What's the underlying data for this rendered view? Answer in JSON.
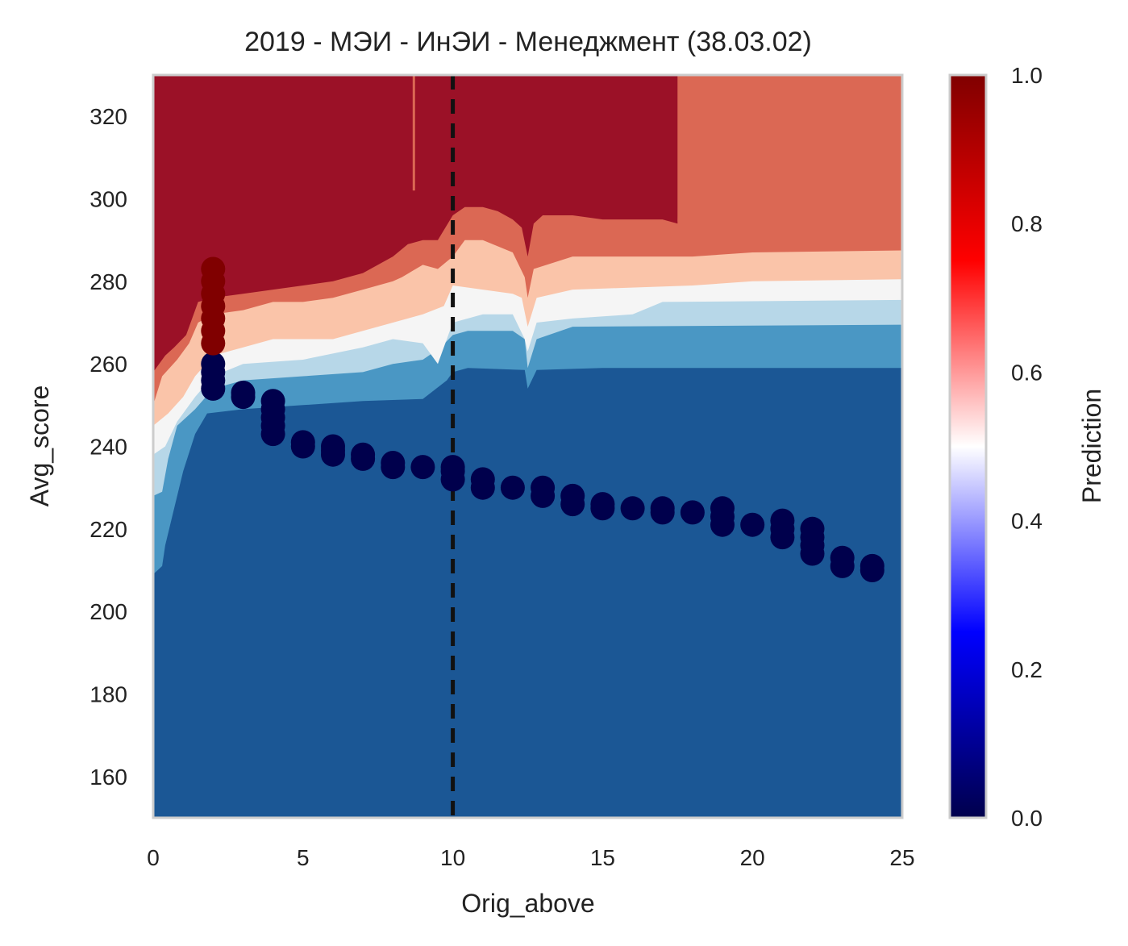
{
  "chart_data": {
    "type": "contour",
    "title": "2019 - МЭИ - ИнЭИ - Менеджмент (38.03.02)",
    "xlabel": "Orig_above",
    "ylabel": "Avg_score",
    "xlim": [
      0,
      25
    ],
    "ylim": [
      150,
      330
    ],
    "x_ticks": [
      "0",
      "5",
      "10",
      "15",
      "20",
      "25"
    ],
    "y_ticks": [
      "160",
      "180",
      "200",
      "220",
      "240",
      "260",
      "280",
      "300",
      "320"
    ],
    "colorbar": {
      "label": "Prediction",
      "range": [
        0.0,
        1.0
      ],
      "ticks": [
        "0.0",
        "0.2",
        "0.4",
        "0.6",
        "0.8",
        "1.0"
      ],
      "colormap": [
        "#00004c",
        "#0000ff",
        "#ffffff",
        "#ff0000",
        "#800000"
      ]
    },
    "contour_colors": {
      "band_0": "#1b5795",
      "band_1": "#4a97c4",
      "band_2": "#b7d7e8",
      "band_3": "#f5f5f5",
      "band_4": "#fac4a9",
      "band_5": "#db6854",
      "band_6": "#9b1127"
    },
    "threshold_line": {
      "x": 10,
      "style": "dashed",
      "color": "#111111"
    },
    "points": {
      "positive_color": "#800000",
      "negative_color": "#00004c",
      "positive": [
        [
          2,
          265
        ],
        [
          2,
          268
        ],
        [
          2,
          271
        ],
        [
          2,
          274
        ],
        [
          2,
          277
        ],
        [
          2,
          280
        ],
        [
          2,
          283
        ]
      ],
      "negative": [
        [
          2,
          254
        ],
        [
          2,
          256
        ],
        [
          2,
          258
        ],
        [
          2,
          260
        ],
        [
          3,
          252
        ],
        [
          3,
          253
        ],
        [
          4,
          243
        ],
        [
          4,
          245
        ],
        [
          4,
          247
        ],
        [
          4,
          249
        ],
        [
          4,
          251
        ],
        [
          5,
          240
        ],
        [
          5,
          241
        ],
        [
          6,
          238
        ],
        [
          6,
          239
        ],
        [
          6,
          240
        ],
        [
          7,
          237
        ],
        [
          7,
          238
        ],
        [
          8,
          235
        ],
        [
          8,
          236
        ],
        [
          9,
          235
        ],
        [
          10,
          232
        ],
        [
          10,
          234
        ],
        [
          10,
          235
        ],
        [
          11,
          230
        ],
        [
          11,
          232
        ],
        [
          12,
          230
        ],
        [
          13,
          228
        ],
        [
          13,
          230
        ],
        [
          14,
          226
        ],
        [
          14,
          228
        ],
        [
          15,
          225
        ],
        [
          15,
          226
        ],
        [
          16,
          225
        ],
        [
          17,
          224
        ],
        [
          17,
          225
        ],
        [
          18,
          224
        ],
        [
          19,
          221
        ],
        [
          19,
          223
        ],
        [
          19,
          225
        ],
        [
          20,
          221
        ],
        [
          21,
          218
        ],
        [
          21,
          220
        ],
        [
          21,
          222
        ],
        [
          22,
          214
        ],
        [
          22,
          216
        ],
        [
          22,
          218
        ],
        [
          22,
          220
        ],
        [
          23,
          211
        ],
        [
          23,
          213
        ],
        [
          24,
          210
        ],
        [
          24,
          211
        ]
      ]
    }
  }
}
